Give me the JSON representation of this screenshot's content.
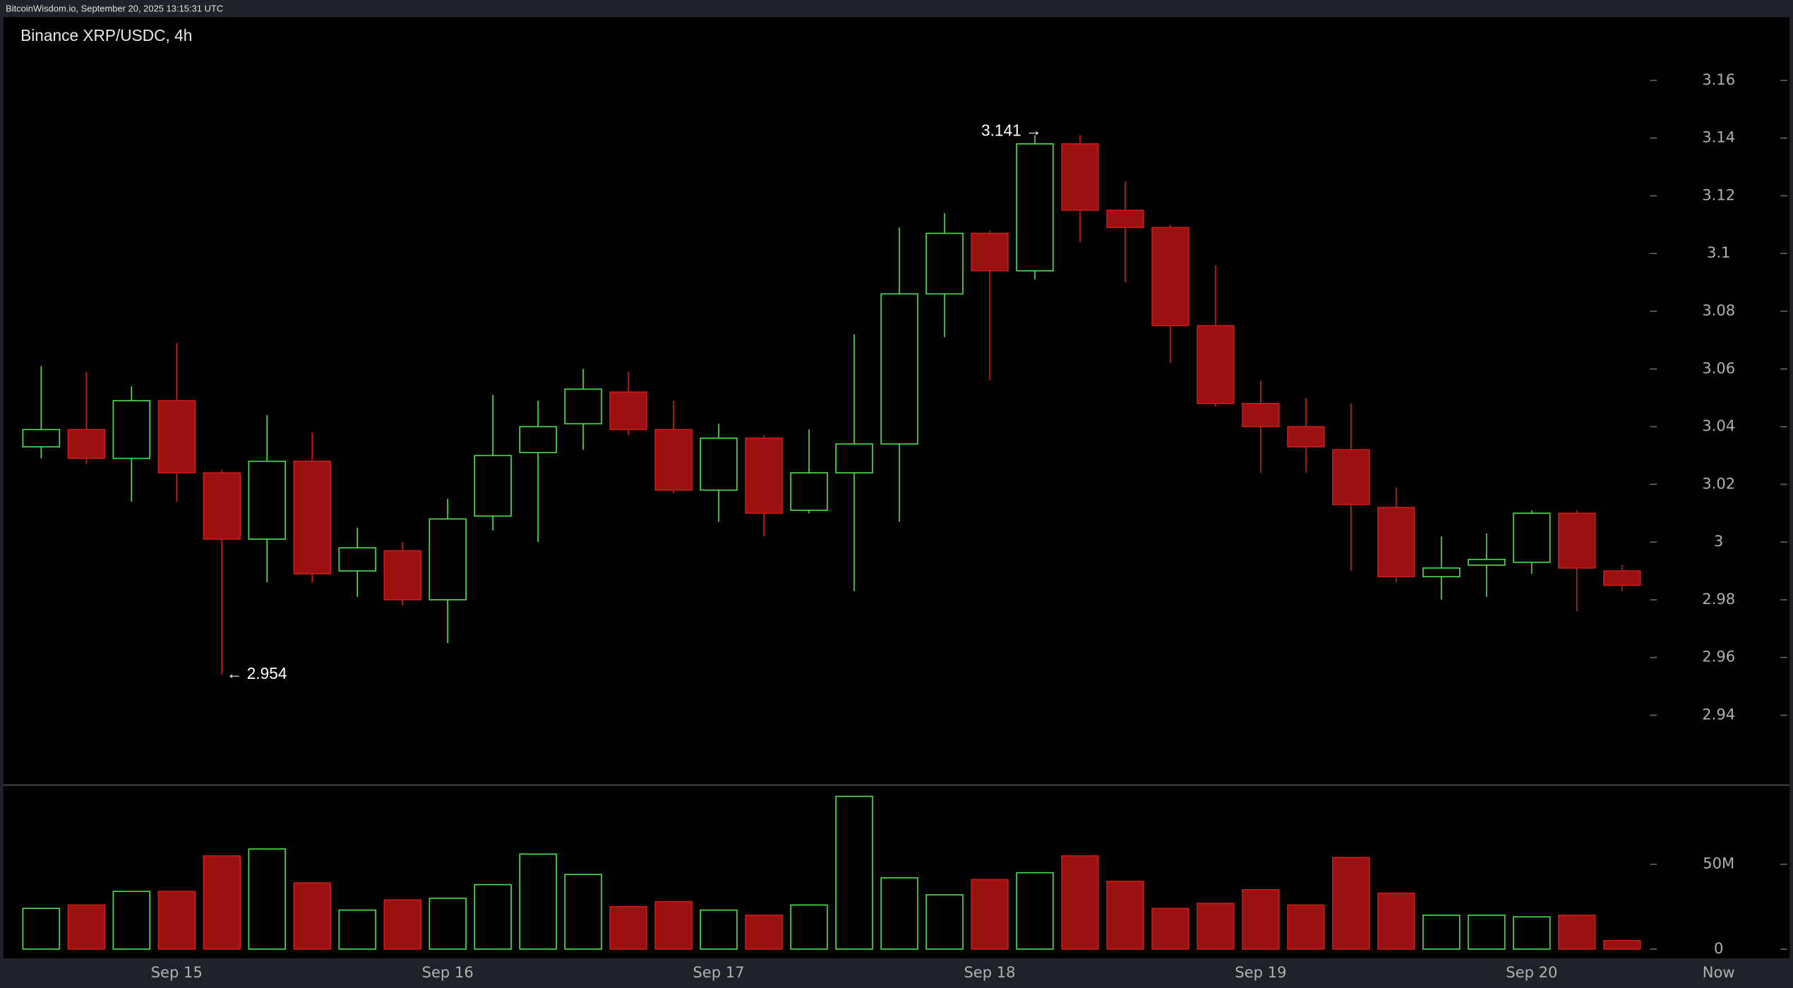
{
  "header": "BitcoinWisdom.io, September 20, 2025 13:15:31 UTC",
  "chart_data": {
    "type": "candlestick",
    "title": "Binance XRP/USDC, 4h",
    "categories": [
      null,
      null,
      null,
      "Sep 15",
      null,
      null,
      null,
      null,
      null,
      "Sep 16",
      null,
      null,
      null,
      null,
      null,
      "Sep 17",
      null,
      null,
      null,
      null,
      null,
      "Sep 18",
      null,
      null,
      null,
      null,
      null,
      "Sep 19",
      null,
      null,
      null,
      null,
      null,
      "Sep 20",
      null,
      null
    ],
    "end_label": "Now",
    "open": [
      3.033,
      3.039,
      3.029,
      3.049,
      3.024,
      3.001,
      3.028,
      2.99,
      2.997,
      2.98,
      3.009,
      3.031,
      3.041,
      3.052,
      3.039,
      3.018,
      3.036,
      3.011,
      3.024,
      3.034,
      3.086,
      3.107,
      3.094,
      3.138,
      3.115,
      3.109,
      3.075,
      3.048,
      3.04,
      3.032,
      3.012,
      2.988,
      2.992,
      2.993,
      3.01,
      2.99
    ],
    "high": [
      3.061,
      3.059,
      3.054,
      3.069,
      3.025,
      3.044,
      3.038,
      3.005,
      3.0,
      3.015,
      3.051,
      3.049,
      3.06,
      3.059,
      3.049,
      3.041,
      3.037,
      3.039,
      3.072,
      3.109,
      3.114,
      3.108,
      3.141,
      3.141,
      3.125,
      3.11,
      3.096,
      3.056,
      3.05,
      3.048,
      3.019,
      3.002,
      3.003,
      3.011,
      3.011,
      2.992
    ],
    "low": [
      3.029,
      3.027,
      3.014,
      3.014,
      2.954,
      2.986,
      2.986,
      2.981,
      2.978,
      2.965,
      3.004,
      3.0,
      3.032,
      3.037,
      3.017,
      3.007,
      3.002,
      3.01,
      2.983,
      3.007,
      3.071,
      3.056,
      3.091,
      3.104,
      3.09,
      3.062,
      3.047,
      3.024,
      3.024,
      2.99,
      2.986,
      2.98,
      2.981,
      2.989,
      2.976,
      2.983
    ],
    "close": [
      3.039,
      3.029,
      3.049,
      3.024,
      3.001,
      3.028,
      2.989,
      2.998,
      2.98,
      3.008,
      3.03,
      3.04,
      3.053,
      3.039,
      3.018,
      3.036,
      3.01,
      3.024,
      3.034,
      3.086,
      3.107,
      3.094,
      3.138,
      3.115,
      3.109,
      3.075,
      3.048,
      3.04,
      3.033,
      3.013,
      2.988,
      2.991,
      2.994,
      3.01,
      2.991,
      2.985
    ],
    "volume": [
      24000000,
      26000000,
      34000000,
      34000000,
      55000000,
      59000000,
      39000000,
      23000000,
      29000000,
      30000000,
      38000000,
      56000000,
      44000000,
      25000000,
      28000000,
      23000000,
      20000000,
      26000000,
      90000000,
      42000000,
      32000000,
      41000000,
      45000000,
      55000000,
      40000000,
      24000000,
      27000000,
      35000000,
      26000000,
      54000000,
      33000000,
      20000000,
      20000000,
      19000000,
      20000000,
      5000000
    ],
    "up_color": "#4ee04e",
    "down_color": "#c41e1e",
    "ylim": [
      2.916,
      3.172
    ],
    "yticks": [
      2.94,
      2.96,
      2.98,
      3,
      3.02,
      3.04,
      3.06,
      3.08,
      3.1,
      3.12,
      3.14,
      3.16
    ],
    "volume_ylim": [
      0,
      95000000
    ],
    "volume_yticks": [
      0,
      {
        "value": 50000000,
        "label": "50M"
      }
    ],
    "high_label": "3.141 →",
    "low_label": "← 2.954"
  }
}
